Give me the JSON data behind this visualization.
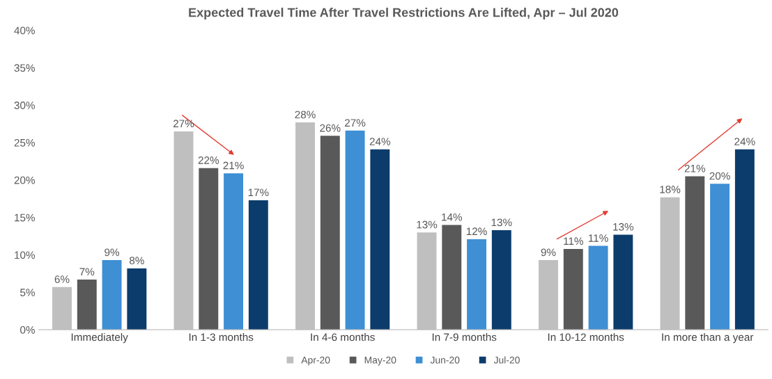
{
  "chart_data": {
    "type": "bar",
    "title": "Expected Travel Time After Travel Restrictions Are Lifted, Apr – Jul 2020",
    "categories": [
      "Immediately",
      "In 1-3 months",
      "In 4-6 months",
      "In 7-9 months",
      "In 10-12 months",
      "In more than a year"
    ],
    "series": [
      {
        "name": "Apr-20",
        "color": "#bfbfbf",
        "values": [
          5.7,
          26.5,
          27.7,
          13.0,
          9.3,
          17.7
        ],
        "value_labels": [
          "6%",
          "27%",
          "28%",
          "13%",
          "9%",
          "18%"
        ]
      },
      {
        "name": "May-20",
        "color": "#595959",
        "values": [
          6.7,
          21.6,
          25.9,
          14.0,
          10.8,
          20.5
        ],
        "value_labels": [
          "7%",
          "22%",
          "26%",
          "14%",
          "11%",
          "21%"
        ]
      },
      {
        "name": "Jun-20",
        "color": "#3e8fd3",
        "values": [
          9.3,
          20.9,
          26.6,
          12.1,
          11.2,
          19.5
        ],
        "value_labels": [
          "9%",
          "21%",
          "27%",
          "12%",
          "11%",
          "20%"
        ]
      },
      {
        "name": "Jul-20",
        "color": "#0c3c6c",
        "values": [
          8.2,
          17.3,
          24.1,
          13.3,
          12.7,
          24.1
        ],
        "value_labels": [
          "8%",
          "17%",
          "24%",
          "13%",
          "13%",
          "24%"
        ]
      }
    ],
    "ylim": [
      0,
      40
    ],
    "yticks": [
      {
        "value": 0,
        "label": "0%"
      },
      {
        "value": 5,
        "label": "5%"
      },
      {
        "value": 10,
        "label": "10%"
      },
      {
        "value": 15,
        "label": "15%"
      },
      {
        "value": 20,
        "label": "20%"
      },
      {
        "value": 25,
        "label": "25%"
      },
      {
        "value": 30,
        "label": "30%"
      },
      {
        "value": 35,
        "label": "35%"
      },
      {
        "value": 40,
        "label": "40%"
      }
    ],
    "grid": false,
    "legend": "bottom"
  }
}
